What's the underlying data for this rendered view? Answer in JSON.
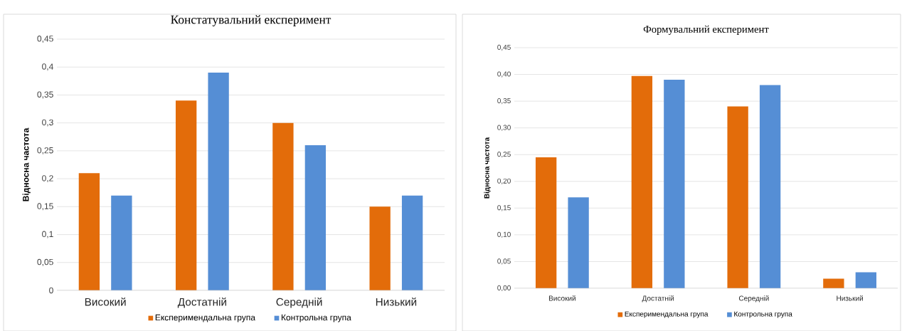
{
  "chart_data": [
    {
      "type": "bar",
      "title": "Констатувальний експеримент",
      "ylabel": "Відносна частота",
      "categories": [
        "Високий",
        "Достатній",
        "Середній",
        "Низький"
      ],
      "series": [
        {
          "name": "Експеримендальна група",
          "color": "#e36c0a",
          "values": [
            0.21,
            0.34,
            0.3,
            0.15
          ]
        },
        {
          "name": "Контрольна група",
          "color": "#558ed5",
          "values": [
            0.17,
            0.39,
            0.26,
            0.17
          ]
        }
      ],
      "ylim": [
        0,
        0.45
      ],
      "yticks": [
        0,
        {
          "value": 0.05,
          "label": "0,05"
        },
        {
          "value": 0.1,
          "label": "0,1"
        },
        {
          "value": 0.15,
          "label": "0,15"
        },
        {
          "value": 0.2,
          "label": "0,2"
        },
        {
          "value": 0.25,
          "label": "0,25"
        },
        {
          "value": 0.3,
          "label": "0,3"
        },
        {
          "value": 0.35,
          "label": "0,35"
        },
        {
          "value": 0.4,
          "label": "0,4"
        },
        {
          "value": 0.45,
          "label": "0,45"
        }
      ],
      "grid": "y",
      "legend": "bottom"
    },
    {
      "type": "bar",
      "title": "Формувальний експеримент",
      "ylabel": "Відносна частота",
      "categories": [
        "Високий",
        "Достатній",
        "Середній",
        "Низький"
      ],
      "series": [
        {
          "name": "Експеримендальна група",
          "color": "#e36c0a",
          "values": [
            0.245,
            0.397,
            0.34,
            0.018
          ]
        },
        {
          "name": "Контрольна група",
          "color": "#558ed5",
          "values": [
            0.17,
            0.39,
            0.38,
            0.03
          ]
        }
      ],
      "ylim": [
        0,
        0.45
      ],
      "yticks": [
        {
          "value": 0,
          "label": "0,00"
        },
        {
          "value": 0.05,
          "label": "0,05"
        },
        {
          "value": 0.1,
          "label": "0,10"
        },
        {
          "value": 0.15,
          "label": "0,15"
        },
        {
          "value": 0.2,
          "label": "0,20"
        },
        {
          "value": 0.25,
          "label": "0,25"
        },
        {
          "value": 0.3,
          "label": "0,30"
        },
        {
          "value": 0.35,
          "label": "0,35"
        },
        {
          "value": 0.4,
          "label": "0,40"
        },
        {
          "value": 0.45,
          "label": "0,45"
        }
      ],
      "grid": "y",
      "legend": "bottom"
    }
  ]
}
